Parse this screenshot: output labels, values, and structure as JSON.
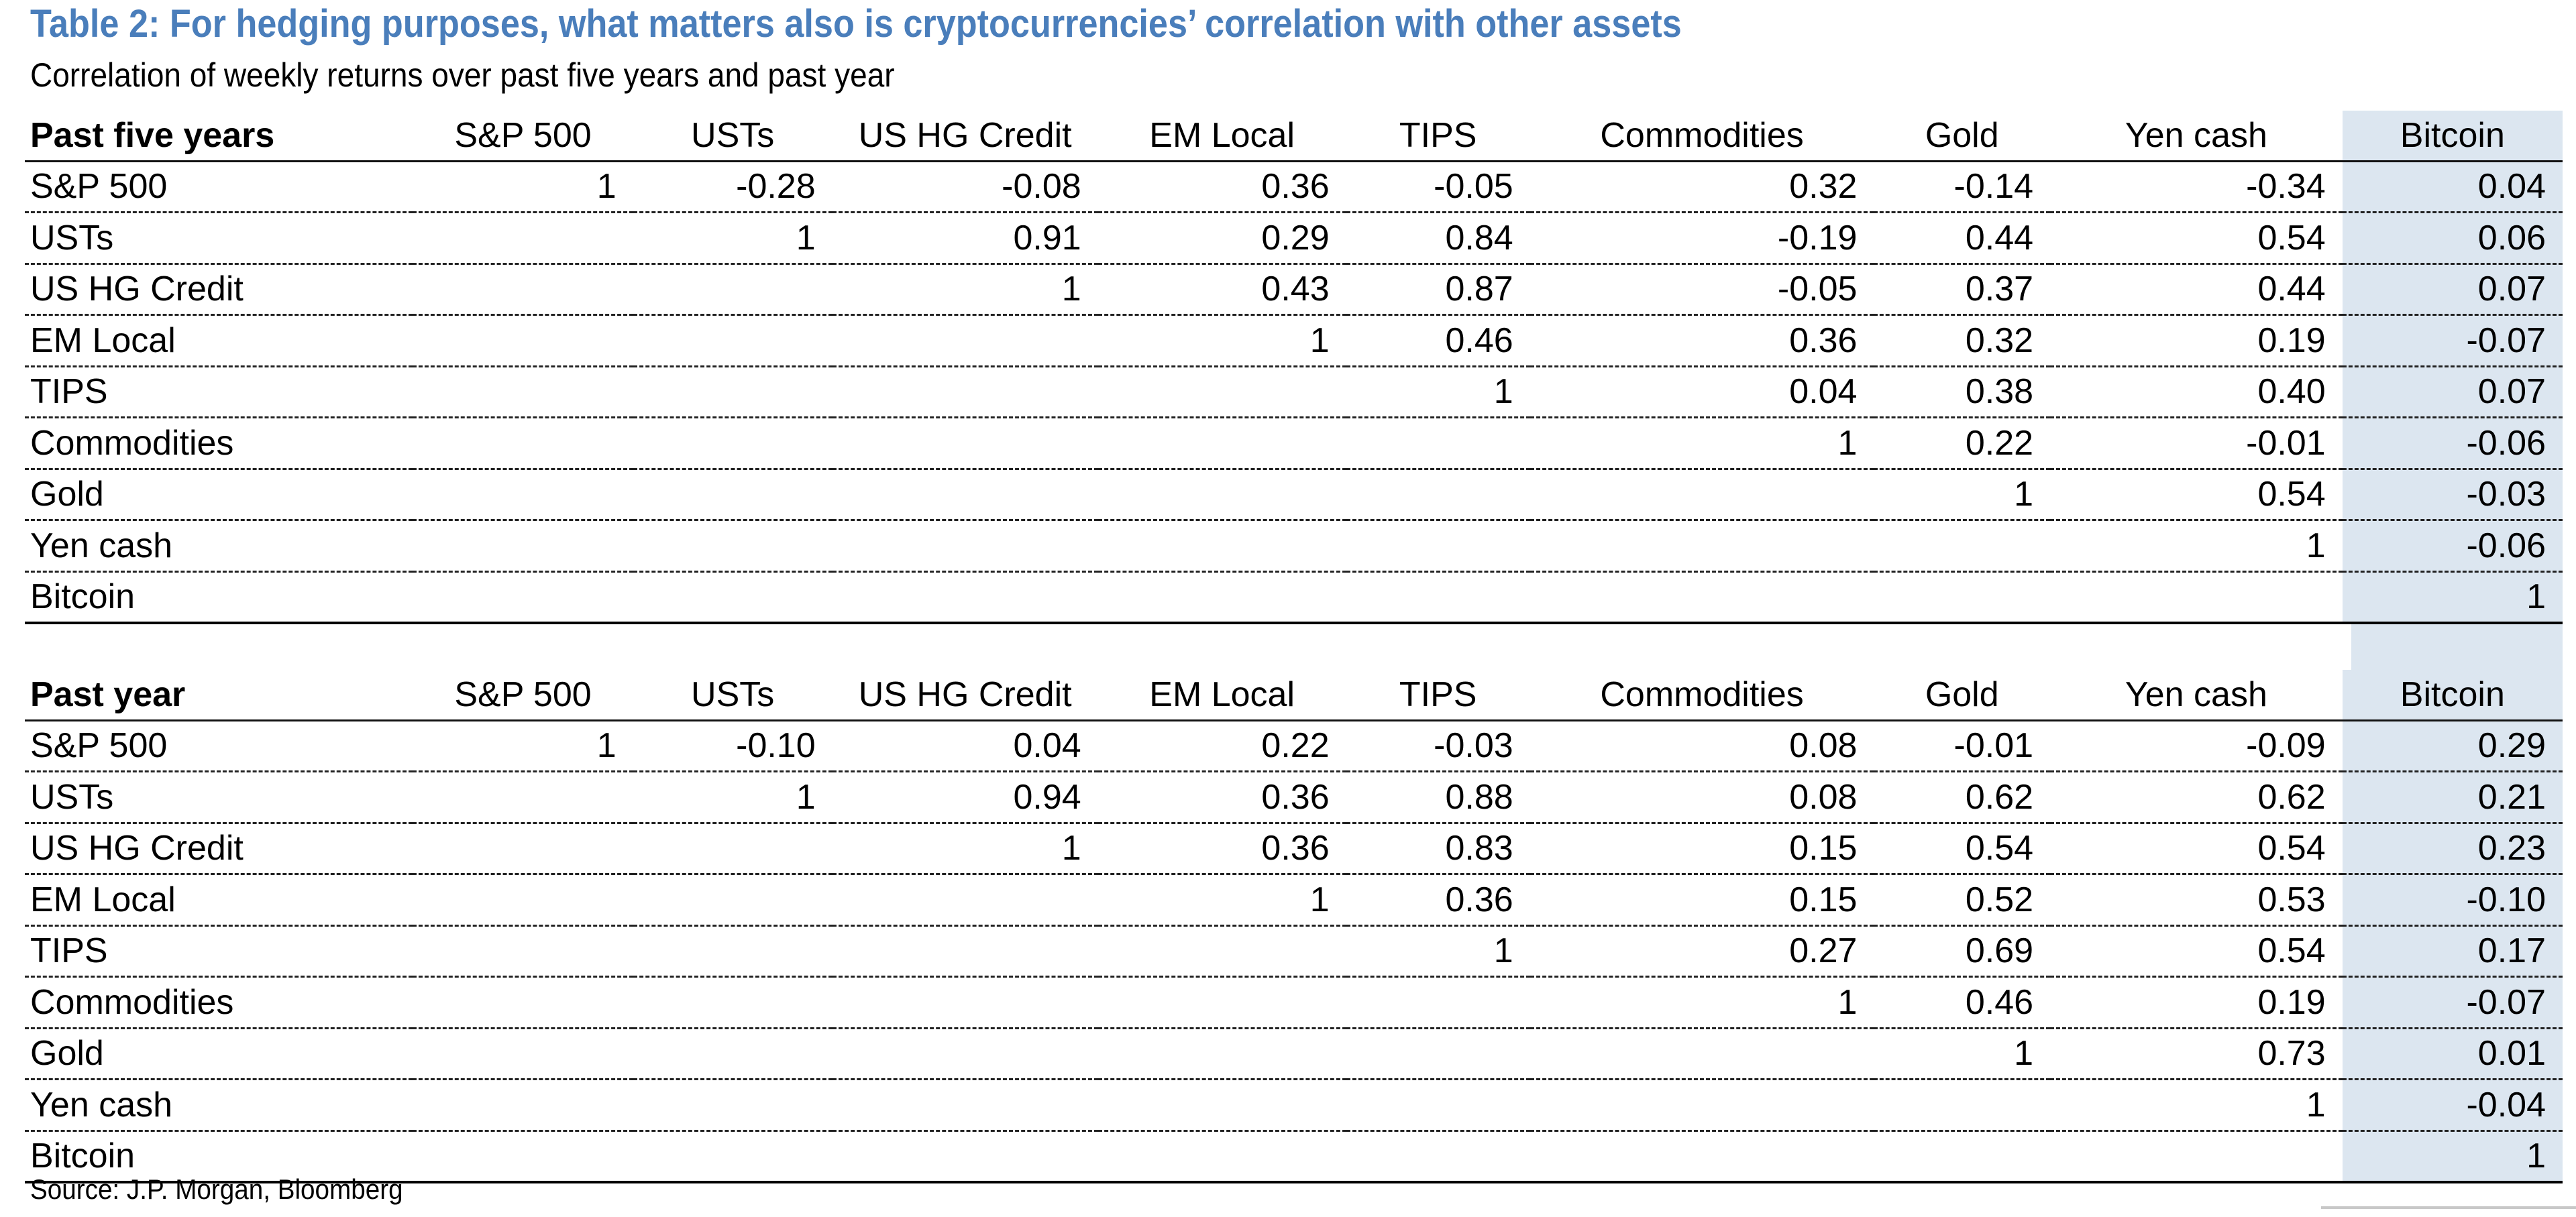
{
  "title": "Table 2: For hedging purposes, what matters also is cryptocurrencies’ correlation with other assets",
  "subtitle": "Correlation of weekly returns over past five years and past year",
  "columns": [
    "S&P 500",
    "USTs",
    "US HG Credit",
    "EM Local",
    "TIPS",
    "Commodities",
    "Gold",
    "Yen cash",
    "Bitcoin"
  ],
  "sections": [
    {
      "label": "Past five years",
      "rows": [
        {
          "label": "S&P 500",
          "values": [
            "1",
            "-0.28",
            "-0.08",
            "0.36",
            "-0.05",
            "0.32",
            "-0.14",
            "-0.34",
            "0.04"
          ]
        },
        {
          "label": "USTs",
          "values": [
            "",
            "1",
            "0.91",
            "0.29",
            "0.84",
            "-0.19",
            "0.44",
            "0.54",
            "0.06"
          ]
        },
        {
          "label": "US HG Credit",
          "values": [
            "",
            "",
            "1",
            "0.43",
            "0.87",
            "-0.05",
            "0.37",
            "0.44",
            "0.07"
          ]
        },
        {
          "label": "EM Local",
          "values": [
            "",
            "",
            "",
            "1",
            "0.46",
            "0.36",
            "0.32",
            "0.19",
            "-0.07"
          ]
        },
        {
          "label": "TIPS",
          "values": [
            "",
            "",
            "",
            "",
            "1",
            "0.04",
            "0.38",
            "0.40",
            "0.07"
          ]
        },
        {
          "label": "Commodities",
          "values": [
            "",
            "",
            "",
            "",
            "",
            "1",
            "0.22",
            "-0.01",
            "-0.06"
          ]
        },
        {
          "label": "Gold",
          "values": [
            "",
            "",
            "",
            "",
            "",
            "",
            "1",
            "0.54",
            "-0.03"
          ]
        },
        {
          "label": "Yen cash",
          "values": [
            "",
            "",
            "",
            "",
            "",
            "",
            "",
            "1",
            "-0.06"
          ]
        },
        {
          "label": "Bitcoin",
          "values": [
            "",
            "",
            "",
            "",
            "",
            "",
            "",
            "",
            "1"
          ]
        }
      ]
    },
    {
      "label": "Past year",
      "rows": [
        {
          "label": "S&P 500",
          "values": [
            "1",
            "-0.10",
            "0.04",
            "0.22",
            "-0.03",
            "0.08",
            "-0.01",
            "-0.09",
            "0.29"
          ]
        },
        {
          "label": "USTs",
          "values": [
            "",
            "1",
            "0.94",
            "0.36",
            "0.88",
            "0.08",
            "0.62",
            "0.62",
            "0.21"
          ]
        },
        {
          "label": "US HG Credit",
          "values": [
            "",
            "",
            "1",
            "0.36",
            "0.83",
            "0.15",
            "0.54",
            "0.54",
            "0.23"
          ]
        },
        {
          "label": "EM Local",
          "values": [
            "",
            "",
            "",
            "1",
            "0.36",
            "0.15",
            "0.52",
            "0.53",
            "-0.10"
          ]
        },
        {
          "label": "TIPS",
          "values": [
            "",
            "",
            "",
            "",
            "1",
            "0.27",
            "0.69",
            "0.54",
            "0.17"
          ]
        },
        {
          "label": "Commodities",
          "values": [
            "",
            "",
            "",
            "",
            "",
            "1",
            "0.46",
            "0.19",
            "-0.07"
          ]
        },
        {
          "label": "Gold",
          "values": [
            "",
            "",
            "",
            "",
            "",
            "",
            "1",
            "0.73",
            "0.01"
          ]
        },
        {
          "label": "Yen cash",
          "values": [
            "",
            "",
            "",
            "",
            "",
            "",
            "",
            "1",
            "-0.04"
          ]
        },
        {
          "label": "Bitcoin",
          "values": [
            "",
            "",
            "",
            "",
            "",
            "",
            "",
            "",
            "1"
          ]
        }
      ]
    }
  ],
  "source": "Source: J.P. Morgan, Bloomberg",
  "colors": {
    "title": "#4a7ebb",
    "bitcoin_column_bg": "#dce6f0"
  }
}
